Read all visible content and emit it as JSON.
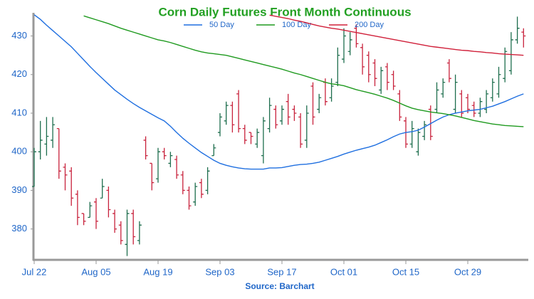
{
  "chart_data": {
    "type": "ohlc",
    "title": "Corn Daily Futures Front Month Continuous",
    "title_color": "#22a022",
    "source": "Source: Barchart",
    "categories": [
      "Jul 22",
      null,
      null,
      null,
      null,
      null,
      null,
      null,
      null,
      null,
      "Aug 05",
      null,
      null,
      null,
      null,
      null,
      null,
      null,
      null,
      null,
      "Aug 19",
      null,
      null,
      null,
      null,
      null,
      null,
      null,
      null,
      null,
      "Sep 03",
      null,
      null,
      null,
      null,
      null,
      null,
      null,
      null,
      null,
      "Sep 17",
      null,
      null,
      null,
      null,
      null,
      null,
      null,
      null,
      null,
      "Oct 01",
      null,
      null,
      null,
      null,
      null,
      null,
      null,
      null,
      null,
      "Oct 15",
      null,
      null,
      null,
      null,
      null,
      null,
      null,
      null,
      null,
      "Oct 29",
      null,
      null,
      null,
      null,
      null,
      null,
      null,
      null,
      null
    ],
    "open": [
      391,
      400,
      402,
      403,
      406,
      396,
      395,
      389,
      384,
      383,
      387,
      388,
      390,
      384,
      381,
      376,
      384,
      377,
      403,
      397,
      393,
      400,
      397,
      398,
      394,
      390,
      387,
      392,
      390,
      399,
      405,
      408,
      412,
      415,
      406,
      405,
      402,
      399,
      406,
      411,
      408,
      413,
      411,
      409,
      403,
      417,
      411,
      418,
      414,
      418,
      424,
      426,
      432,
      427,
      425,
      423,
      416,
      422,
      420,
      415,
      408,
      402,
      400,
      404,
      411,
      411,
      415,
      423,
      411,
      415,
      414,
      412,
      410,
      411,
      414,
      415,
      419,
      421,
      429,
      431
    ],
    "high": [
      401,
      408,
      409,
      409,
      406,
      397,
      396,
      390,
      384,
      387,
      388,
      393,
      391,
      385,
      382,
      385,
      385,
      382,
      404,
      397,
      401,
      401,
      400,
      399,
      395,
      391,
      392,
      393,
      396,
      402,
      410,
      413,
      413,
      416,
      407,
      405,
      406,
      409,
      414,
      412,
      412,
      415,
      412,
      410,
      412,
      418,
      415,
      419,
      419,
      427,
      432,
      431,
      433,
      428,
      426,
      424,
      422,
      423,
      421,
      416,
      409,
      408,
      406,
      408,
      412,
      418,
      419,
      424,
      420,
      416,
      415,
      413,
      414,
      416,
      419,
      422,
      427,
      431,
      435,
      432
    ],
    "low": [
      391,
      398,
      399,
      401,
      393,
      390,
      386,
      381,
      381,
      383,
      380,
      388,
      383,
      379,
      376,
      373,
      376,
      376,
      398,
      390,
      392,
      398,
      396,
      393,
      389,
      385,
      386,
      388,
      389,
      399,
      404,
      407,
      405,
      405,
      402,
      402,
      401,
      397,
      405,
      406,
      407,
      407,
      408,
      401,
      401,
      407,
      410,
      412,
      413,
      417,
      423,
      425,
      427,
      420,
      418,
      417,
      415,
      416,
      416,
      408,
      401,
      401,
      399,
      403,
      403,
      410,
      414,
      418,
      410,
      409,
      410,
      409,
      409,
      410,
      413,
      414,
      418,
      420,
      428,
      427
    ],
    "close": [
      400,
      403,
      404,
      407,
      395,
      394,
      388,
      383,
      382,
      386,
      382,
      391,
      385,
      380,
      377,
      384,
      378,
      381,
      399,
      392,
      400,
      399,
      399,
      394,
      390,
      386,
      391,
      389,
      395,
      401,
      409,
      412,
      407,
      406,
      403,
      404,
      405,
      408,
      412,
      407,
      411,
      409,
      410,
      402,
      410,
      409,
      414,
      413,
      417,
      425,
      430,
      429,
      428,
      422,
      420,
      419,
      421,
      418,
      417,
      409,
      402,
      406,
      405,
      407,
      404,
      416,
      418,
      419,
      418,
      410,
      411,
      410,
      413,
      415,
      418,
      420,
      426,
      429,
      432,
      430
    ],
    "up_color": "#1e6e4e",
    "down_color": "#c8223c",
    "series": [
      {
        "name": "50 Day",
        "color": "#1f6fe0",
        "values": [
          435.5,
          434.3,
          432.8,
          431.4,
          430,
          428.6,
          427.2,
          425.5,
          423.8,
          422.1,
          420.5,
          419,
          417.5,
          416,
          414.8,
          413.6,
          412.5,
          411.5,
          410.6,
          409.7,
          408.8,
          408,
          406.6,
          405,
          403.5,
          402.2,
          401,
          399.8,
          398.8,
          397.8,
          397,
          396.5,
          396.1,
          395.8,
          395.6,
          395.5,
          395.5,
          395.5,
          395.8,
          395.8,
          395.9,
          396.2,
          396.5,
          396.7,
          396.8,
          397,
          397.3,
          397.8,
          398.3,
          398.8,
          399.4,
          399.9,
          400.4,
          400.8,
          401.2,
          401.7,
          402.4,
          403.1,
          403.9,
          404.6,
          405,
          405.2,
          405.6,
          406.4,
          407.3,
          408.2,
          409,
          409.6,
          410,
          410.3,
          410.6,
          410.8,
          411,
          411.4,
          411.8,
          412.4,
          413,
          413.7,
          414.4,
          415
        ]
      },
      {
        "name": "100 Day",
        "color": "#1f9a1f",
        "values": [
          null,
          null,
          null,
          null,
          null,
          null,
          null,
          null,
          435.2,
          434.7,
          434.2,
          433.7,
          433.2,
          432.6,
          432,
          431.5,
          431,
          430.5,
          430,
          429.5,
          429,
          428.7,
          428.3,
          427.8,
          427.3,
          426.8,
          426.3,
          425.9,
          425.6,
          425.4,
          425.2,
          425,
          424.6,
          424.2,
          423.8,
          423.4,
          423,
          422.6,
          422.2,
          421.8,
          421.4,
          420.9,
          420.4,
          420,
          419.5,
          419,
          418.5,
          418,
          417.6,
          417.4,
          417.1,
          416.6,
          416.1,
          415.7,
          415.3,
          414.9,
          414.4,
          413.9,
          413.3,
          412.6,
          411.9,
          411.3,
          410.9,
          410.6,
          410.3,
          410.1,
          409.9,
          409.6,
          409.3,
          408.9,
          408.5,
          408.1,
          407.8,
          407.5,
          407.2,
          407,
          406.8,
          406.7,
          406.6,
          406.5
        ]
      },
      {
        "name": "200 Day",
        "color": "#d0203a",
        "values": [
          null,
          null,
          null,
          null,
          null,
          null,
          null,
          null,
          null,
          null,
          null,
          null,
          null,
          null,
          null,
          null,
          null,
          null,
          null,
          null,
          null,
          null,
          null,
          null,
          null,
          null,
          null,
          null,
          null,
          null,
          null,
          null,
          null,
          null,
          null,
          null,
          null,
          null,
          435.4,
          435.1,
          434.8,
          434.5,
          434.1,
          433.8,
          433.4,
          433,
          432.6,
          432.3,
          432,
          431.8,
          431.5,
          431.2,
          430.9,
          430.6,
          430.3,
          430,
          429.7,
          429.4,
          429.1,
          428.8,
          428.5,
          428.2,
          427.9,
          427.6,
          427.3,
          427.1,
          426.9,
          426.7,
          426.5,
          426.3,
          426.2,
          426,
          425.9,
          425.7,
          425.6,
          425.4,
          425.3,
          425.2,
          425.1,
          425
        ]
      }
    ],
    "ylim": [
      372,
      436
    ],
    "yticks": [
      380,
      390,
      400,
      410,
      420,
      430
    ],
    "grid": false
  }
}
